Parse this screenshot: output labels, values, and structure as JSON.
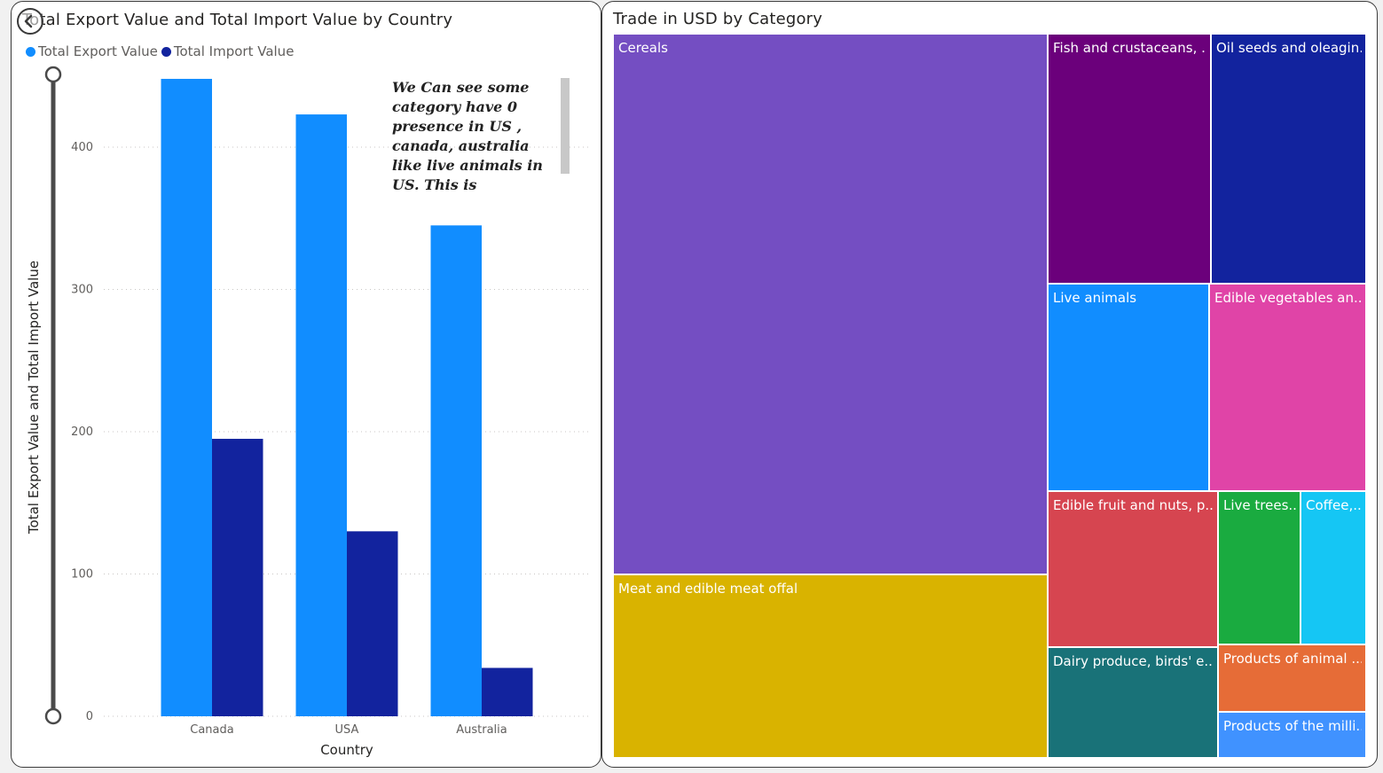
{
  "left_visual": {
    "title": "Total Export Value and Total Import Value by Country",
    "legend": [
      {
        "label": "Total Export Value",
        "color": "#118dff"
      },
      {
        "label": "Total Import Value",
        "color": "#12239e"
      }
    ],
    "annotation": "We Can see some category have 0 presence in US , canada, australia like live animals in US. This is opportunity to"
  },
  "right_visual": {
    "title": "Trade in USD by Category"
  },
  "chart_data": [
    {
      "type": "bar",
      "title": "Total Export Value and Total Import Value by Country",
      "xlabel": "Country",
      "ylabel": "Total Export Value and Total Import Value",
      "categories": [
        "Canada",
        "USA",
        "Australia"
      ],
      "series": [
        {
          "name": "Total Export Value",
          "color": "#118dff",
          "values": [
            448,
            423,
            345
          ]
        },
        {
          "name": "Total Import Value",
          "color": "#12239e",
          "values": [
            195,
            130,
            34
          ]
        }
      ],
      "ylim": [
        0,
        450
      ],
      "yticks": [
        0,
        100,
        200,
        300,
        400
      ],
      "grid": true,
      "legend_position": "top-left"
    },
    {
      "type": "treemap",
      "title": "Trade in USD by Category",
      "items": [
        {
          "label": "Cereals",
          "color": "#744ec2"
        },
        {
          "label": "Meat and edible meat offal",
          "color": "#d9b300"
        },
        {
          "label": "Fish and crustaceans, ...",
          "color": "#6b007b"
        },
        {
          "label": "Oil seeds and oleagin...",
          "color": "#12239e"
        },
        {
          "label": "Live animals",
          "color": "#118dff"
        },
        {
          "label": "Edible vegetables an...",
          "color": "#e044a7"
        },
        {
          "label": "Edible fruit and nuts, p...",
          "color": "#d64550"
        },
        {
          "label": "Live trees...",
          "color": "#1aab40"
        },
        {
          "label": "Coffee,...",
          "color": "#15c6f4"
        },
        {
          "label": "Dairy produce, birds' e...",
          "color": "#197278"
        },
        {
          "label": "Products of animal ...",
          "color": "#e66c37"
        },
        {
          "label": "Products of the milli...",
          "color": "#4092ff"
        }
      ]
    }
  ]
}
